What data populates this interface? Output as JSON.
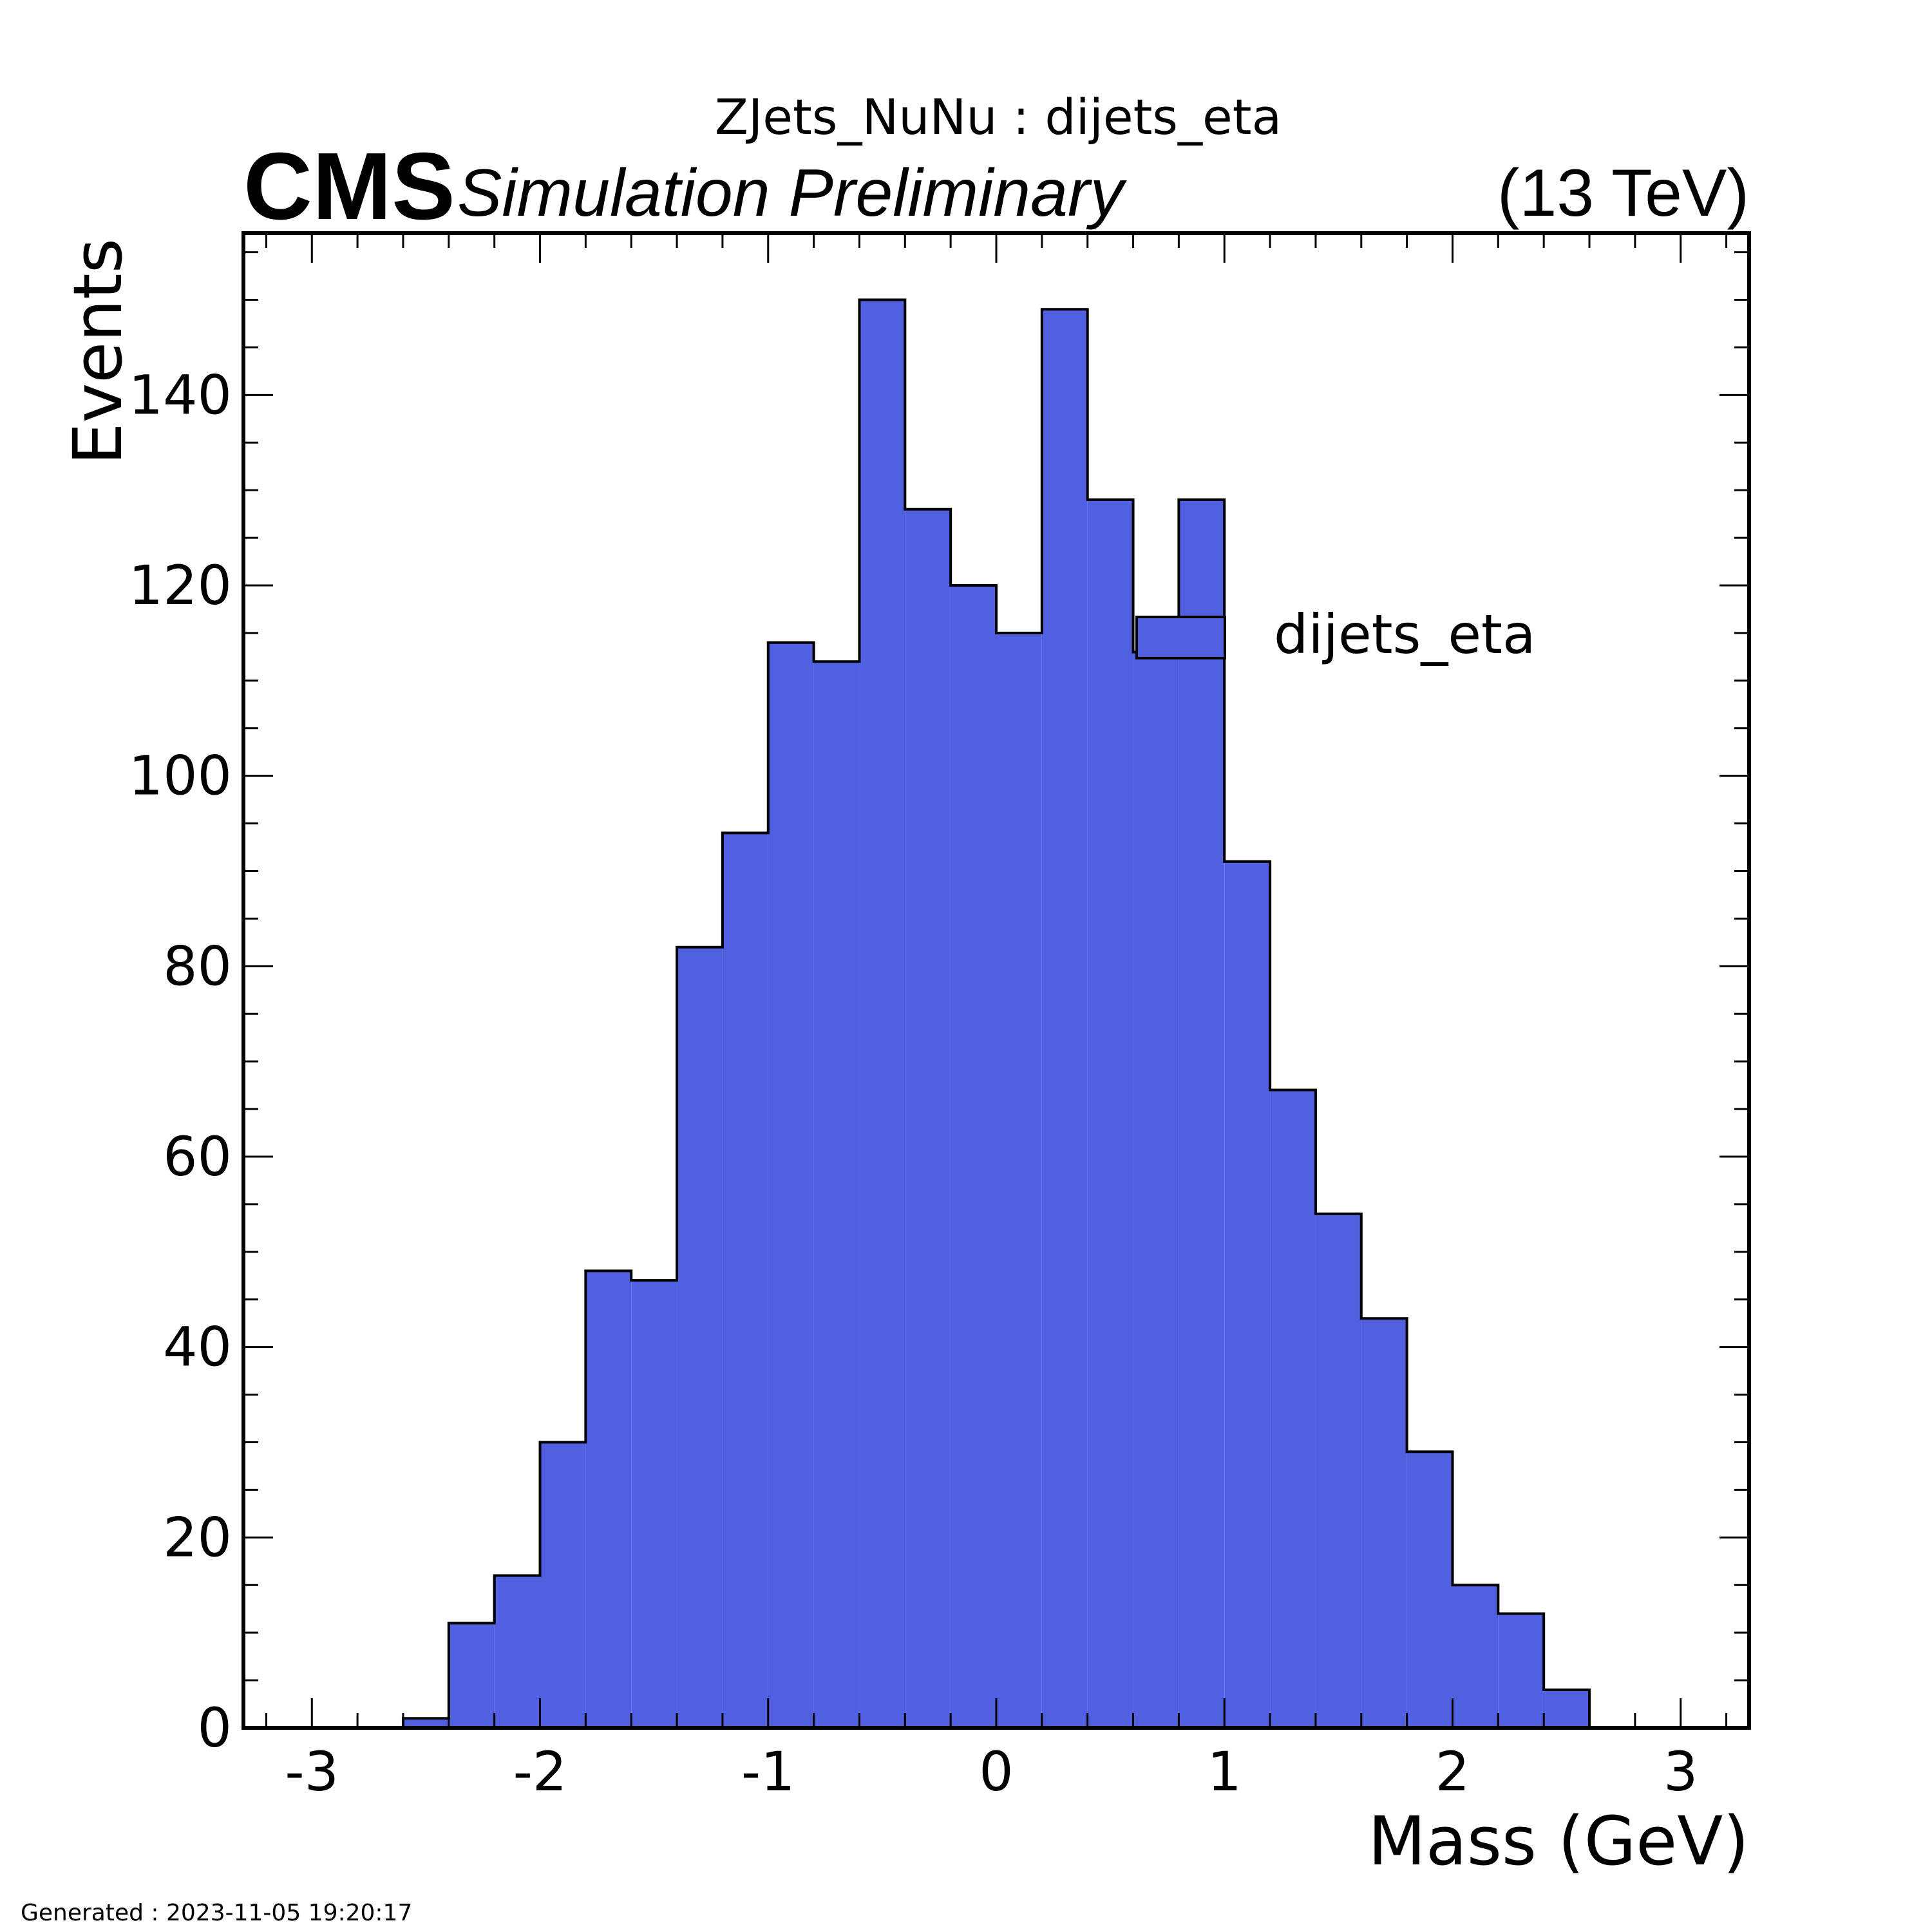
{
  "header": {
    "title": "ZJets_NuNu : dijets_eta",
    "cms_label": "CMS",
    "cms_sublabel": "Simulation Preliminary",
    "energy": "(13 TeV)"
  },
  "footer": {
    "generated": "Generated : 2023-11-05 19:20:17"
  },
  "chart_data": {
    "type": "bar",
    "histogram": true,
    "title": "ZJets_NuNu : dijets_eta",
    "xlabel": "Mass (GeV)",
    "ylabel": "Events",
    "xlim": [
      -3.3,
      3.3
    ],
    "ylim": [
      0,
      157
    ],
    "xticks": [
      -3,
      -2,
      -1,
      0,
      1,
      2,
      3
    ],
    "xtick_labels": [
      "-3",
      "-2",
      "-1",
      "0",
      "1",
      "2",
      "3"
    ],
    "yticks": [
      0,
      20,
      40,
      60,
      80,
      100,
      120,
      140
    ],
    "ytick_labels": [
      "0",
      "20",
      "40",
      "60",
      "80",
      "100",
      "120",
      "140"
    ],
    "grid": false,
    "legend": {
      "entries": [
        "dijets_eta"
      ],
      "placement": "top-right"
    },
    "fill_color": "#5060e0",
    "edge_color": "#000000",
    "bin_edges": [
      -3.0,
      -2.8,
      -2.6,
      -2.4,
      -2.2,
      -2.0,
      -1.8,
      -1.6,
      -1.4,
      -1.2,
      -1.0,
      -0.8,
      -0.6,
      -0.4,
      -0.2,
      0.0,
      0.2,
      0.4,
      0.6,
      0.8,
      1.0,
      1.2,
      1.4,
      1.6,
      1.8,
      2.0,
      2.2,
      2.4,
      2.6,
      2.8,
      3.0
    ],
    "series": [
      {
        "name": "dijets_eta",
        "values": [
          0,
          0,
          1,
          11,
          16,
          30,
          48,
          47,
          82,
          94,
          114,
          112,
          150,
          128,
          120,
          115,
          149,
          129,
          113,
          129,
          91,
          67,
          54,
          43,
          29,
          15,
          12,
          4,
          0,
          0
        ]
      }
    ]
  }
}
